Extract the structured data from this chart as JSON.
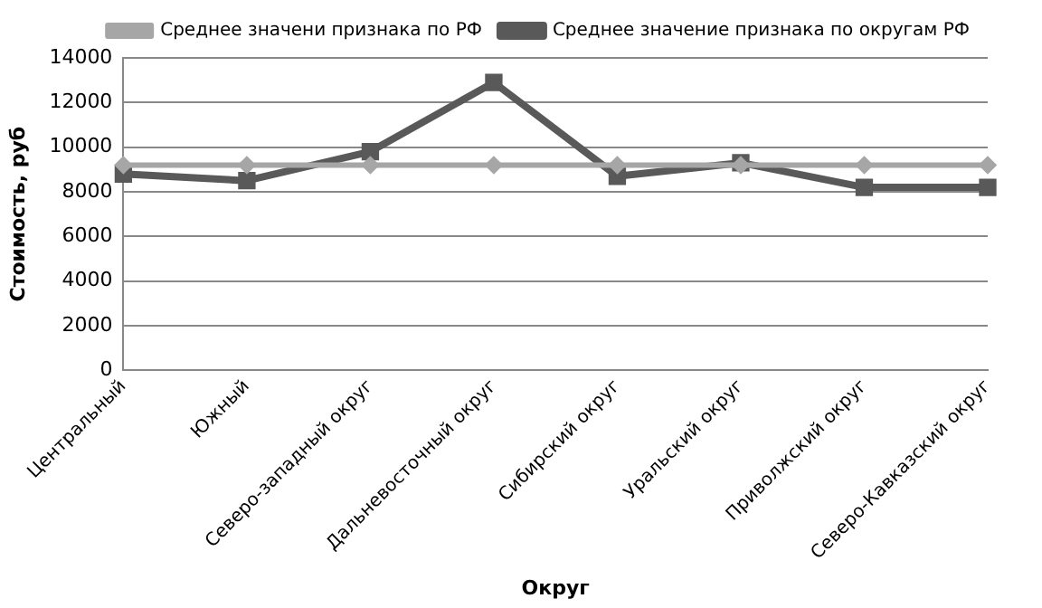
{
  "chart_data": {
    "type": "line",
    "xlabel": "Округ",
    "ylabel": "Стоимость, руб",
    "categories": [
      "Центральный",
      "Южный",
      "Северо-западный округ",
      "Дальневосточный округ",
      "Сибирский округ",
      "Уральский округ",
      "Приволжский округ",
      "Северо-Кавказский округ"
    ],
    "series": [
      {
        "name": "Среднее значение признака по округам РФ",
        "color": "#595959",
        "marker": "square",
        "values": [
          8800,
          8500,
          9800,
          12900,
          8700,
          9300,
          8200,
          8200
        ]
      },
      {
        "name": "Среднее значени признака по РФ",
        "color": "#a6a6a6",
        "marker": "diamond",
        "values": [
          9200,
          9200,
          9200,
          9200,
          9200,
          9200,
          9200,
          9200
        ]
      }
    ],
    "ylim": [
      0,
      14000
    ],
    "yticks": [
      0,
      2000,
      4000,
      6000,
      8000,
      10000,
      12000,
      14000
    ],
    "grid": "y",
    "legend": "top right",
    "line_style": "solid"
  }
}
